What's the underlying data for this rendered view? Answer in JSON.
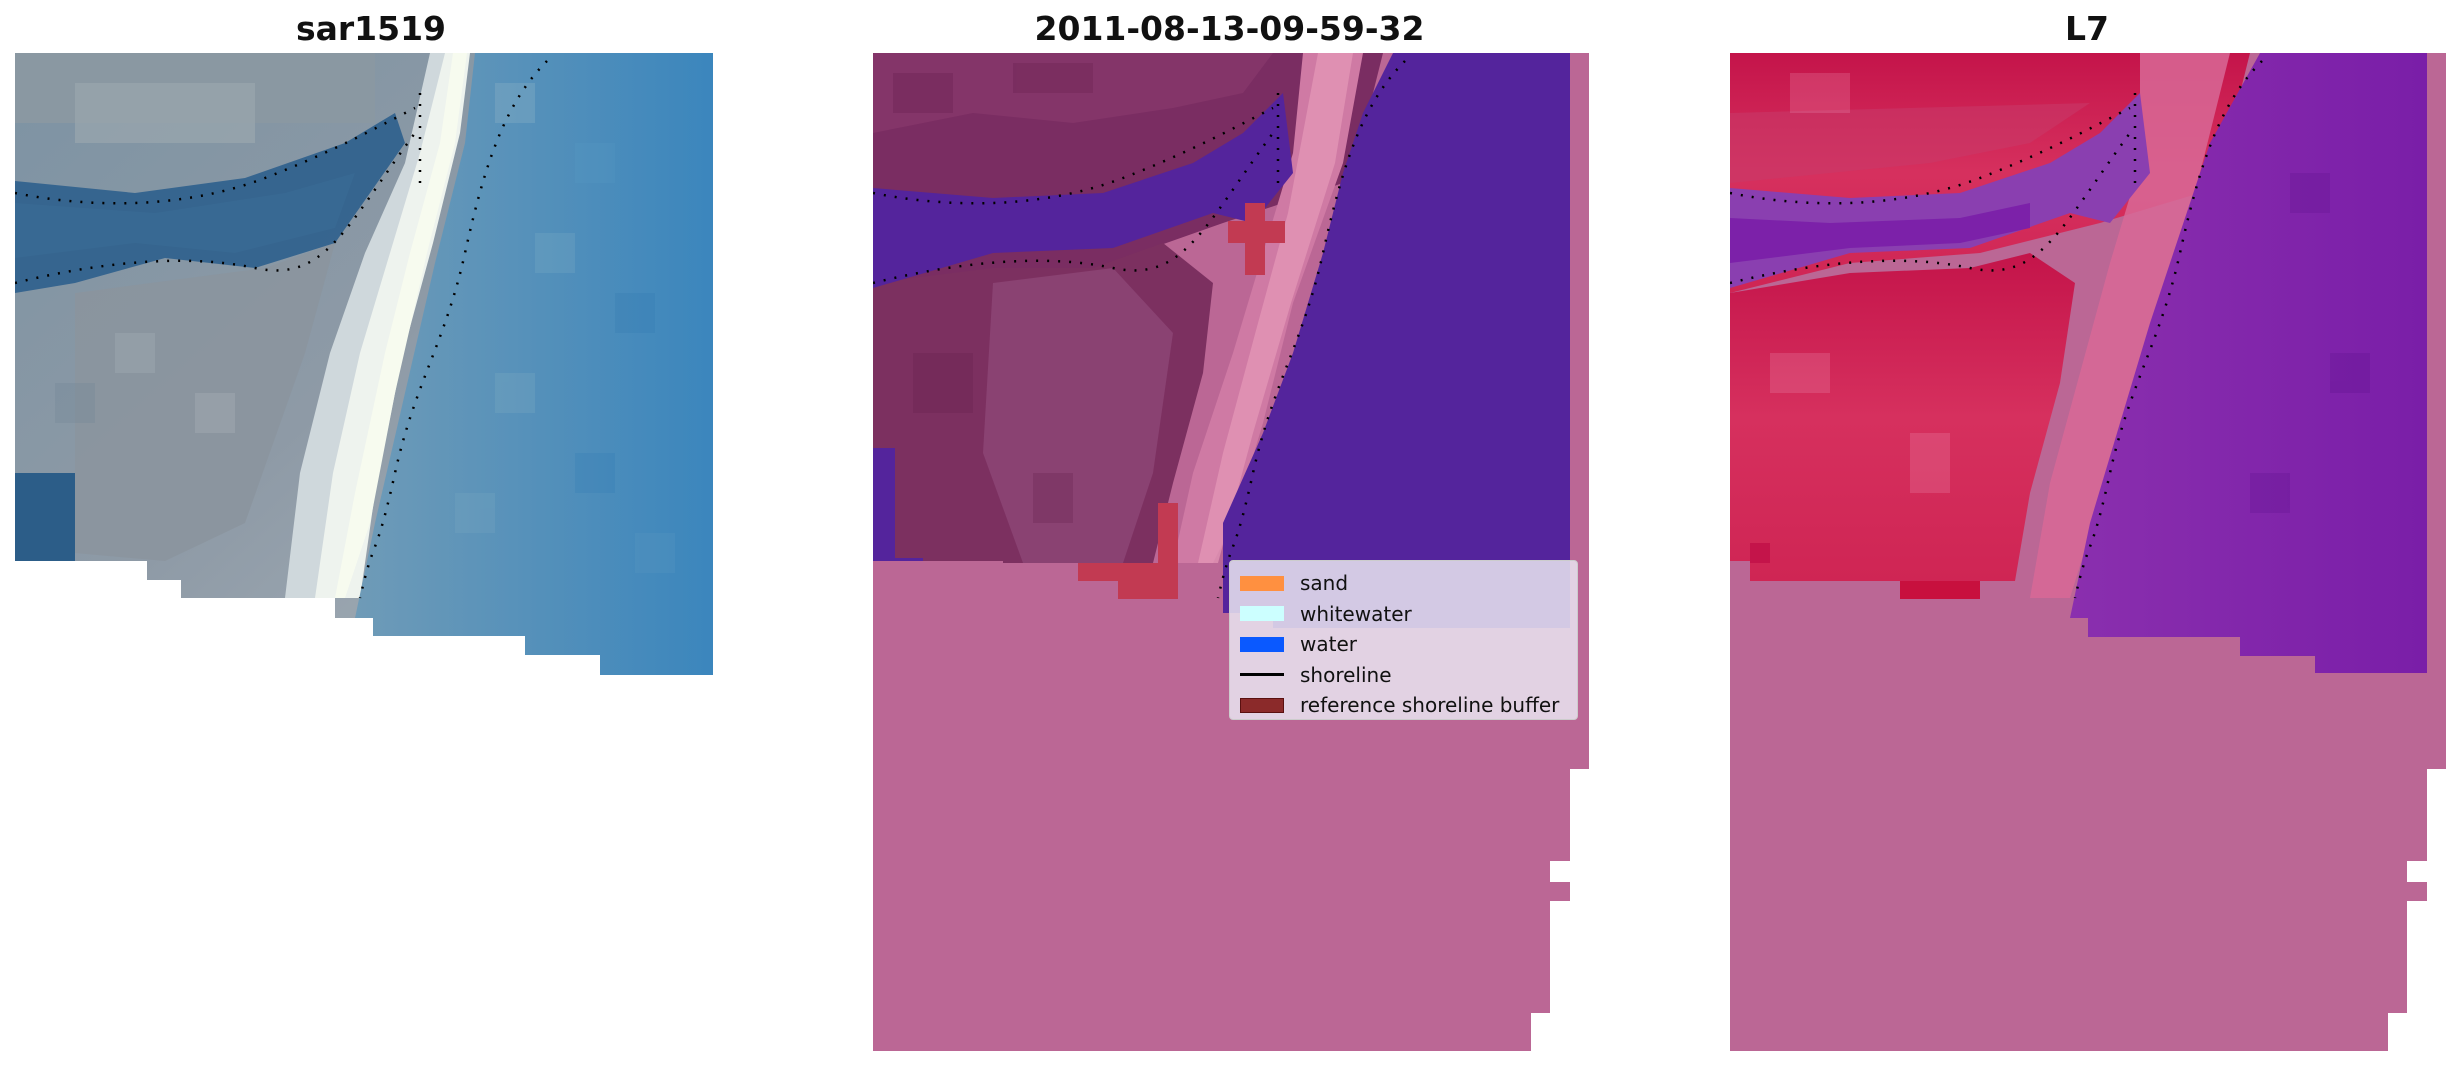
{
  "panels": [
    {
      "title": "sar1519"
    },
    {
      "title": "2011-08-13-09-59-32"
    },
    {
      "title": "L7"
    }
  ],
  "legend": {
    "items": [
      {
        "label": "sand",
        "type": "patch",
        "color": "#ff9040"
      },
      {
        "label": "whitewater",
        "type": "patch",
        "color": "#ccffff"
      },
      {
        "label": "water",
        "type": "patch",
        "color": "#0a59ff"
      },
      {
        "label": "shoreline",
        "type": "line",
        "color": "#000000"
      },
      {
        "label": "reference shoreline buffer",
        "type": "patch",
        "color": "#8b2a2a"
      }
    ]
  },
  "colors": {
    "nodata": "#bb6795",
    "water_class": "#54249c",
    "reference_buffer": "#c23a52",
    "rgb_water": "#3f84b6",
    "rgb_surf": "#e8f4e4",
    "ndwi_land": "#c4144a",
    "ndwi_water": "#7a1ea8"
  }
}
